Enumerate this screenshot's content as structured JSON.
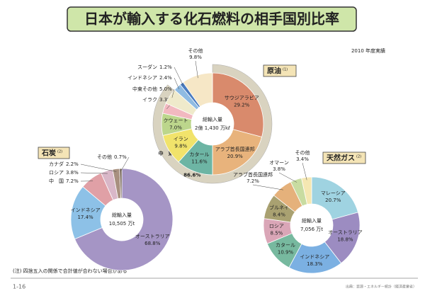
{
  "title": "日本が輸入する化石燃料の相手国別比率",
  "subtitle": "2010 年度実績",
  "note": "(注) 四捨五入の関係で合計値が合わない場合がある",
  "page": "1-16",
  "source": "出典：資源・エネルギー統計（経済産業省）",
  "chart_data": [
    {
      "type": "pie",
      "title": "原油",
      "title_note": "(1)",
      "center_label": "総輸入量",
      "total_label": "2億 1,430 万kℓ",
      "categories": [
        "サウジアラビア",
        "アラブ首長国連邦",
        "カタール",
        "イラン",
        "クウェート",
        "イラク",
        "中東その他",
        "インドネシア",
        "スーダン",
        "その他"
      ],
      "values": [
        29.2,
        20.9,
        11.6,
        9.8,
        7.0,
        3.3,
        5.0,
        2.4,
        1.2,
        9.8
      ],
      "value_labels": [
        "29.2%",
        "20.9%",
        "11.6%",
        "9.8%",
        "7.0%",
        "3.3%",
        "5.0%",
        "2.4%",
        "1.2%",
        "9.8%"
      ],
      "colors": [
        "#d98a6c",
        "#e8b37c",
        "#6db5a4",
        "#f1e36b",
        "#bcd68c",
        "#f2b9c0",
        "#efeacb",
        "#8fbbe2",
        "#4a7cc0",
        "#f6e7c6"
      ],
      "region": {
        "name": "中　東",
        "value": 86.6,
        "value_label": "86.6%",
        "color": "#d9d3c0"
      }
    },
    {
      "type": "pie",
      "title": "石炭",
      "title_note": "(2)",
      "center_label": "総輸入量",
      "total_label": "10,505 万t",
      "categories": [
        "オーストラリア",
        "インドネシア",
        "中　国",
        "ロシア",
        "カナダ",
        "その他"
      ],
      "values": [
        68.8,
        17.4,
        7.2,
        3.8,
        2.2,
        0.7
      ],
      "value_labels": [
        "68.8%",
        "17.4%",
        "7.2%",
        "3.8%",
        "2.2%",
        "0.7%"
      ],
      "colors": [
        "#a595c5",
        "#8dc1e7",
        "#e0a0a6",
        "#d9b7c8",
        "#a8907f",
        "#6b5a48"
      ]
    },
    {
      "type": "pie",
      "title": "天然ガス",
      "title_note": "(2)",
      "center_label": "総輸入量",
      "total_label": "7,056 万t",
      "categories": [
        "マレーシア",
        "オーストラリア",
        "インドネシア",
        "カタール",
        "ロシア",
        "ブルネイ",
        "アラブ首長国連邦",
        "オマーン",
        "その他"
      ],
      "values": [
        20.7,
        18.8,
        18.3,
        10.9,
        8.5,
        8.4,
        7.2,
        3.8,
        3.4
      ],
      "value_labels": [
        "20.7%",
        "18.8%",
        "18.3%",
        "10.9%",
        "8.5%",
        "8.4%",
        "7.2%",
        "3.8%",
        "3.4%"
      ],
      "colors": [
        "#9fd3e1",
        "#9c8cc1",
        "#7bb0e2",
        "#77b99f",
        "#daa6b7",
        "#a9a171",
        "#e5b17b",
        "#c8dca1",
        "#f5e7b2"
      ]
    }
  ]
}
